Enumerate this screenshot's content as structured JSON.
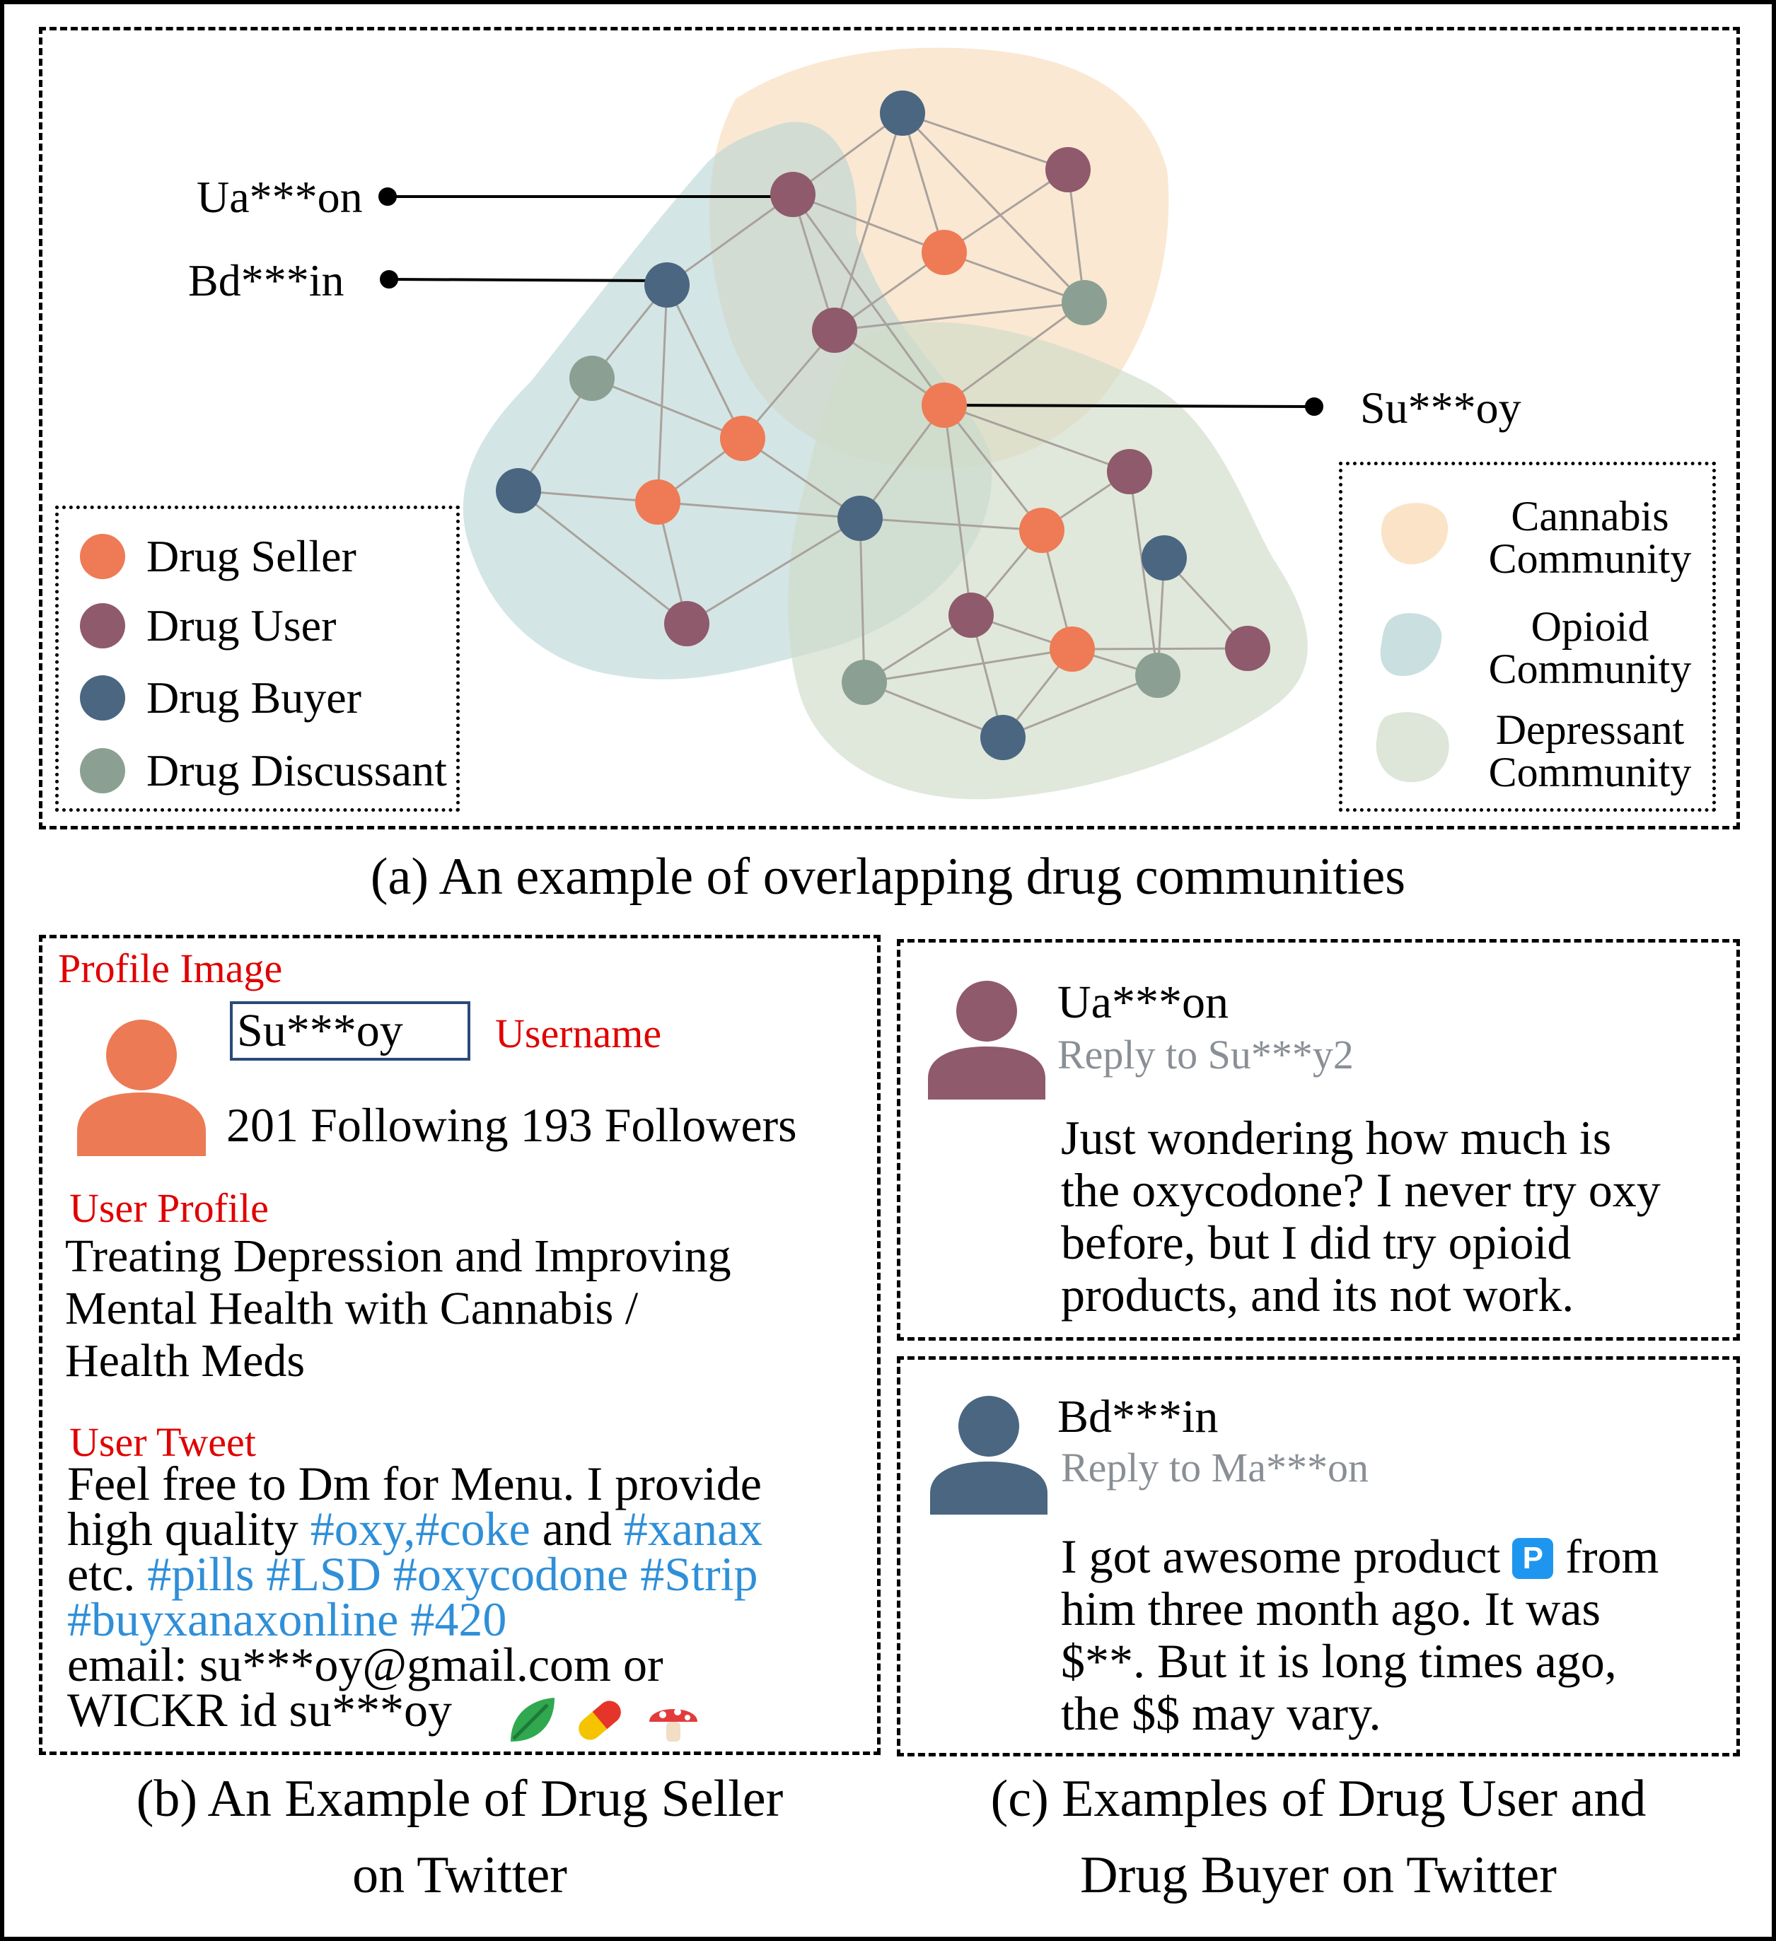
{
  "network": {
    "labels": {
      "u1": "Ua***on",
      "u2": "Bd***in",
      "u3": "Su***oy"
    },
    "role_legend": [
      {
        "label": "Drug Seller",
        "color": "#ee7b55"
      },
      {
        "label": "Drug User",
        "color": "#8f5a6c"
      },
      {
        "label": "Drug Buyer",
        "color": "#4a6681"
      },
      {
        "label": "Drug Discussant",
        "color": "#8ba093"
      }
    ],
    "community_legend": [
      {
        "line1": "Cannabis",
        "line2": "Community",
        "color": "#fbe5cb"
      },
      {
        "line1": "Opioid",
        "line2": "Community",
        "color": "#c9dfdf"
      },
      {
        "line1": "Depressant",
        "line2": "Community",
        "color": "#dce5d7"
      }
    ],
    "caption": "(a) An example of overlapping drug communities"
  },
  "seller": {
    "profile_image_label": "Profile Image",
    "username": "Su***oy",
    "username_label": "Username",
    "stats": "201 Following 193 Followers",
    "user_profile_label": "User Profile",
    "profile_lines": [
      "Treating Depression and Improving",
      "Mental Health with Cannabis /",
      "Health Meds"
    ],
    "user_tweet_label": "User Tweet",
    "tweet": {
      "l1": "Feel free to Dm for Menu. I provide",
      "l2a": "high quality ",
      "l2b": "#oxy,#coke",
      "l2c": " and ",
      "l2d": "#xanax",
      "l3a": "etc. ",
      "l3b": "#pills #LSD #oxycodone #Strip",
      "l4": "#buyxanaxonline #420",
      "l5": "email: su***oy@gmail.com or",
      "l6": "WICKR id su***oy"
    },
    "emoji_icons": [
      "leaf-icon",
      "pill-icon",
      "mushroom-icon"
    ],
    "caption_l1": "(b) An Example of Drug Seller",
    "caption_l2": "on Twitter"
  },
  "replies": {
    "items": [
      {
        "name": "Ua***on",
        "reply_to": "Reply to Su***y2",
        "avatar_color": "#8f5a6c",
        "lines": [
          "Just wondering how much is",
          "the oxycodone? I never try oxy",
          "before, but I did try opioid",
          "products, and its not work."
        ]
      },
      {
        "name": "Bd***in",
        "reply_to": "Reply to Ma***on",
        "avatar_color": "#4a6681",
        "l1a": "I got awesome product",
        "badge": "P",
        "l1b": "from",
        "lines": [
          "him three month ago. It was",
          "$**. But it is long times ago,",
          "the $$ may vary."
        ]
      }
    ],
    "caption_l1": "(c) Examples of Drug User and",
    "caption_l2": "Drug Buyer on Twitter"
  }
}
